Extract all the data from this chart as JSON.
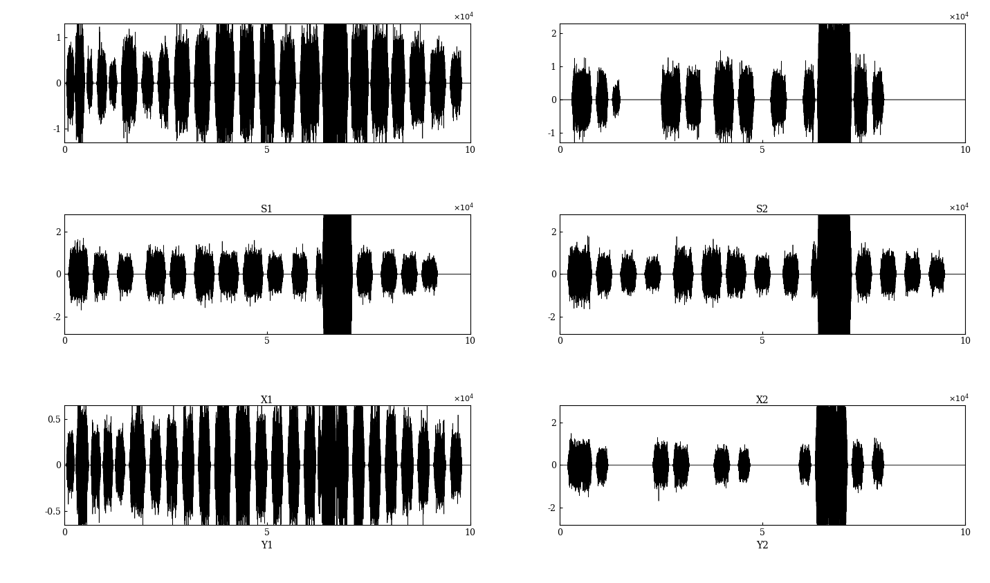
{
  "n_samples": 100000,
  "xlim": [
    0,
    100000
  ],
  "xticks": [
    0,
    50000,
    100000
  ],
  "xticklabels": [
    "0",
    "5",
    "10"
  ],
  "subplots": [
    {
      "row": 0,
      "col": 0,
      "ylim": [
        -1.3,
        1.3
      ],
      "yticks": [
        -1,
        0,
        1
      ],
      "yticklabels": [
        "-1",
        "0",
        "1"
      ],
      "title": "",
      "xlabel": "",
      "signal_type": "s1_source"
    },
    {
      "row": 0,
      "col": 1,
      "ylim": [
        -1.3,
        2.3
      ],
      "yticks": [
        -1,
        0,
        1,
        2
      ],
      "yticklabels": [
        "-1",
        "0",
        "1",
        "2"
      ],
      "title": "",
      "xlabel": "",
      "signal_type": "s2_source"
    },
    {
      "row": 1,
      "col": 0,
      "ylim": [
        -2.8,
        2.8
      ],
      "yticks": [
        -2,
        0,
        2
      ],
      "yticklabels": [
        "-2",
        "0",
        "2"
      ],
      "title": "S1",
      "xlabel": "",
      "signal_type": "s1_separated"
    },
    {
      "row": 1,
      "col": 1,
      "ylim": [
        -2.8,
        2.8
      ],
      "yticks": [
        -2,
        0,
        2
      ],
      "yticklabels": [
        "-2",
        "0",
        "2"
      ],
      "title": "S2",
      "xlabel": "",
      "signal_type": "s2_separated"
    },
    {
      "row": 2,
      "col": 0,
      "ylim": [
        -0.65,
        0.65
      ],
      "yticks": [
        -0.5,
        0,
        0.5
      ],
      "yticklabels": [
        "-0.5",
        "0",
        "0.5"
      ],
      "title": "X1",
      "xlabel": "Y1",
      "signal_type": "x1_mixed"
    },
    {
      "row": 2,
      "col": 1,
      "ylim": [
        -2.8,
        2.8
      ],
      "yticks": [
        -2,
        0,
        2
      ],
      "yticklabels": [
        "-2",
        "0",
        "2"
      ],
      "title": "X2",
      "xlabel": "Y2",
      "signal_type": "x2_mixed"
    }
  ],
  "line_color": "#000000",
  "line_width": 0.5,
  "background_color": "#ffffff",
  "font_family": "DejaVu Serif",
  "title_fontsize": 10,
  "tick_fontsize": 9,
  "label_fontsize": 10
}
